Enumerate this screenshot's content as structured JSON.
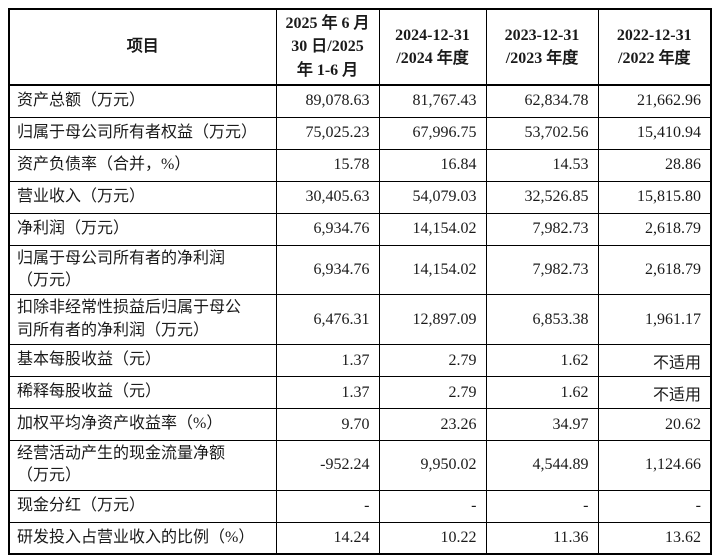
{
  "colors": {
    "background": "#ffffff",
    "text": "#1a1a1a",
    "border": "#000000"
  },
  "table": {
    "header": {
      "item_label": "项目",
      "periods": [
        "2025 年 6 月\n30 日/2025\n年 1-6 月",
        "2024-12-31\n/2024 年度",
        "2023-12-31\n/2023 年度",
        "2022-12-31\n/2022 年度"
      ]
    },
    "rows": [
      {
        "label": "资产总额（万元）",
        "values": [
          "89,078.63",
          "81,767.43",
          "62,834.78",
          "21,662.96"
        ]
      },
      {
        "label": "归属于母公司所有者权益（万元）",
        "values": [
          "75,025.23",
          "67,996.75",
          "53,702.56",
          "15,410.94"
        ]
      },
      {
        "label": "资产负债率（合并，%）",
        "values": [
          "15.78",
          "16.84",
          "14.53",
          "28.86"
        ]
      },
      {
        "label": "营业收入（万元）",
        "values": [
          "30,405.63",
          "54,079.03",
          "32,526.85",
          "15,815.80"
        ]
      },
      {
        "label": "净利润（万元）",
        "values": [
          "6,934.76",
          "14,154.02",
          "7,982.73",
          "2,618.79"
        ]
      },
      {
        "label": "归属于母公司所有者的净利润\n（万元）",
        "values": [
          "6,934.76",
          "14,154.02",
          "7,982.73",
          "2,618.79"
        ]
      },
      {
        "label": "扣除非经常性损益后归属于母公\n司所有者的净利润（万元）",
        "values": [
          "6,476.31",
          "12,897.09",
          "6,853.38",
          "1,961.17"
        ]
      },
      {
        "label": "基本每股收益（元）",
        "values": [
          "1.37",
          "2.79",
          "1.62",
          "不适用"
        ]
      },
      {
        "label": "稀释每股收益（元）",
        "values": [
          "1.37",
          "2.79",
          "1.62",
          "不适用"
        ]
      },
      {
        "label": "加权平均净资产收益率（%）",
        "values": [
          "9.70",
          "23.26",
          "34.97",
          "20.62"
        ]
      },
      {
        "label": "经营活动产生的现金流量净额\n（万元）",
        "values": [
          "-952.24",
          "9,950.02",
          "4,544.89",
          "1,124.66"
        ]
      },
      {
        "label": "现金分红（万元）",
        "values": [
          "-",
          "-",
          "-",
          "-"
        ]
      },
      {
        "label": "研发投入占营业收入的比例（%）",
        "values": [
          "14.24",
          "10.22",
          "11.36",
          "13.62"
        ]
      }
    ]
  }
}
